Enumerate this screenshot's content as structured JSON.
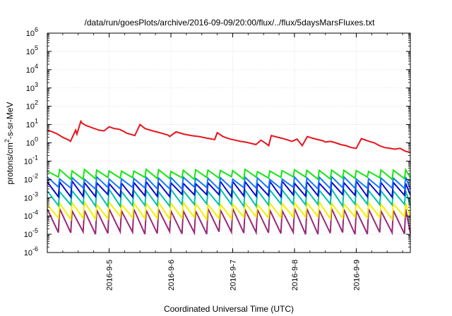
{
  "chart_data": {
    "type": "line",
    "title": "/data/run/goesPlots/archive/2016-09-09/20:00/flux/../flux/5daysMarsFluxes.txt",
    "xlabel": "Coordinated Universal Time (UTC)",
    "ylabel_parts": [
      "protons/cm",
      "2",
      "-s-sr-MeV"
    ],
    "y_scale": "log",
    "ylim": [
      1e-06,
      1000000.0
    ],
    "xlim": [
      "2016-09-04 00:00",
      "2016-09-09 21:00"
    ],
    "y_ticks": [
      {
        "base": "10",
        "exp": "-6",
        "value": 1e-06
      },
      {
        "base": "10",
        "exp": "-5",
        "value": 1e-05
      },
      {
        "base": "10",
        "exp": "-4",
        "value": 0.0001
      },
      {
        "base": "10",
        "exp": "-3",
        "value": 0.001
      },
      {
        "base": "10",
        "exp": "-2",
        "value": 0.01
      },
      {
        "base": "10",
        "exp": "-1",
        "value": 0.1
      },
      {
        "base": "10",
        "exp": "0",
        "value": 1.0
      },
      {
        "base": "10",
        "exp": "1",
        "value": 10.0
      },
      {
        "base": "10",
        "exp": "2",
        "value": 100.0
      },
      {
        "base": "10",
        "exp": "3",
        "value": 1000.0
      },
      {
        "base": "10",
        "exp": "4",
        "value": 10000.0
      },
      {
        "base": "10",
        "exp": "5",
        "value": 100000.0
      },
      {
        "base": "10",
        "exp": "6",
        "value": 1000000.0
      }
    ],
    "x_ticks": [
      {
        "label": "2016-9-5",
        "value": "2016-09-05"
      },
      {
        "label": "2016-9-6",
        "value": "2016-09-06"
      },
      {
        "label": "2016-9-7",
        "value": "2016-09-07"
      },
      {
        "label": "2016-9-8",
        "value": "2016-09-08"
      },
      {
        "label": "2016-9-9",
        "value": "2016-09-09"
      }
    ],
    "grid": true,
    "legend": "none",
    "series": [
      {
        "color": "#e8141c",
        "x": [
          "2016-09-04 00:00",
          "2016-09-04 02:00",
          "2016-09-04 04:00",
          "2016-09-04 06:00",
          "2016-09-04 08:00",
          "2016-09-04 09:00",
          "2016-09-04 11:00",
          "2016-09-04 11:30",
          "2016-09-04 13:00",
          "2016-09-04 13:30",
          "2016-09-04 15:00",
          "2016-09-04 17:00",
          "2016-09-04 20:00",
          "2016-09-04 22:00",
          "2016-09-05 00:00",
          "2016-09-05 02:00",
          "2016-09-05 04:00",
          "2016-09-05 06:00",
          "2016-09-05 06:30",
          "2016-09-05 08:00",
          "2016-09-05 10:00",
          "2016-09-05 12:00",
          "2016-09-05 14:00",
          "2016-09-05 17:00",
          "2016-09-05 19:00",
          "2016-09-05 21:00",
          "2016-09-05 23:00",
          "2016-09-05 23:30",
          "2016-09-06 02:00",
          "2016-09-06 05:00",
          "2016-09-06 08:00",
          "2016-09-06 11:00",
          "2016-09-06 14:00",
          "2016-09-06 17:00",
          "2016-09-06 18:00",
          "2016-09-06 20:00",
          "2016-09-06 21:00",
          "2016-09-06 22:00",
          "2016-09-06 23:00",
          "2016-09-07 01:00",
          "2016-09-07 03:00",
          "2016-09-07 05:00",
          "2016-09-07 07:00",
          "2016-09-07 09:00",
          "2016-09-07 11:00",
          "2016-09-07 13:00",
          "2016-09-07 14:00",
          "2016-09-07 15:00",
          "2016-09-07 17:00",
          "2016-09-07 19:00",
          "2016-09-07 21:00",
          "2016-09-07 23:00",
          "2016-09-08 01:00",
          "2016-09-08 03:00",
          "2016-09-08 05:00",
          "2016-09-08 07:00",
          "2016-09-08 09:00",
          "2016-09-08 11:00",
          "2016-09-08 12:00",
          "2016-09-08 14:00",
          "2016-09-08 16:00",
          "2016-09-08 18:00",
          "2016-09-08 20:00",
          "2016-09-08 22:00",
          "2016-09-09 00:00",
          "2016-09-09 02:00",
          "2016-09-09 05:00",
          "2016-09-09 07:00",
          "2016-09-09 09:00",
          "2016-09-09 11:00",
          "2016-09-09 13:00",
          "2016-09-09 15:00",
          "2016-09-09 17:00",
          "2016-09-09 19:00",
          "2016-09-09 21:00"
        ],
        "values": [
          5,
          4,
          3,
          2,
          1.5,
          1.2,
          5,
          3,
          15,
          12,
          9,
          7,
          5,
          4.5,
          7.5,
          6,
          5.5,
          4,
          3.5,
          3,
          2.5,
          10,
          6,
          4.5,
          3.8,
          3.2,
          2.6,
          2.2,
          4,
          3,
          2.5,
          2.2,
          1.8,
          1.5,
          3.6,
          2.3,
          2,
          1.8,
          1.6,
          1.4,
          1.2,
          1.1,
          0.95,
          0.8,
          1.4,
          0.9,
          0.7,
          2.5,
          2.1,
          1.8,
          1.5,
          1.2,
          1.6,
          0.7,
          2.2,
          1.8,
          1.5,
          1.3,
          1.1,
          1.2,
          1,
          0.8,
          0.7,
          0.55,
          0.5,
          1.7,
          1.2,
          1,
          0.7,
          0.55,
          0.5,
          0.45,
          0.5,
          0.35,
          0.3
        ]
      }
    ],
    "band_series": [
      {
        "color": "#16e616",
        "high": 0.032,
        "low": 0.012
      },
      {
        "color": "#1578ff",
        "high": 0.012,
        "low": 0.0033
      },
      {
        "color": "#0a0acf",
        "high": 0.007,
        "low": 0.0013
      },
      {
        "color": "#00c2aa",
        "high": 0.0025,
        "low": 0.0004
      },
      {
        "color": "#f2ef00",
        "high": 0.0005,
        "low": 8e-05
      },
      {
        "color": "#982878",
        "high": 0.00022,
        "low": 1.2e-05
      }
    ],
    "cycles_per_day": 5
  }
}
